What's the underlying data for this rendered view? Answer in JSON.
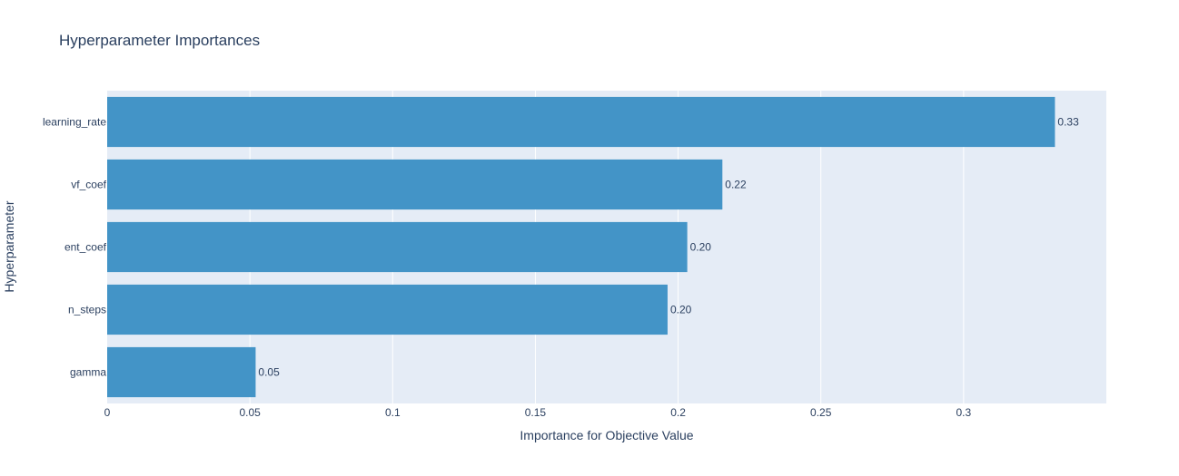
{
  "chart_data": {
    "type": "bar",
    "orientation": "horizontal",
    "title": "Hyperparameter Importances",
    "xlabel": "Importance for Objective Value",
    "ylabel": "Hyperparameter",
    "categories": [
      "learning_rate",
      "vf_coef",
      "ent_coef",
      "n_steps",
      "gamma"
    ],
    "values": [
      0.332,
      0.2155,
      0.2032,
      0.1963,
      0.052
    ],
    "data_labels": [
      "0.33",
      "0.22",
      "0.20",
      "0.20",
      "0.05"
    ],
    "xlim": [
      0,
      0.35
    ],
    "x_ticks": [
      0,
      0.05,
      0.1,
      0.15,
      0.2,
      0.25,
      0.3
    ],
    "x_tick_labels": [
      "0",
      "0.05",
      "0.1",
      "0.15",
      "0.2",
      "0.25",
      "0.3"
    ],
    "grid": true,
    "legend": "none",
    "colors": {
      "bar": "#4394c7",
      "plot_background": "#e5ecf6",
      "grid": "#ffffff",
      "text": "#2a3f5f"
    }
  }
}
